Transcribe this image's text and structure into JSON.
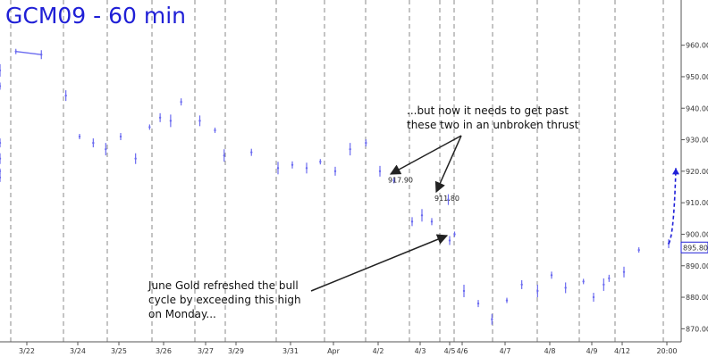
{
  "chart_data": {
    "type": "line",
    "title": "GCM09 - 60 min",
    "xlabel": "",
    "ylabel": "",
    "ylim": [
      865,
      965
    ],
    "x_ticks": [
      "3/22",
      "3/24",
      "3/25",
      "3/26",
      "3/27",
      "3/29",
      "3/31",
      "Apr",
      "4/2",
      "4/3",
      "4/5",
      "4/6",
      "4/7",
      "4/8",
      "4/9",
      "4/12",
      "20:00"
    ],
    "y_ticks": [
      870,
      880,
      890,
      900,
      910,
      920,
      930,
      940,
      950,
      960
    ],
    "y_tick_labels": [
      "870.00",
      "880.00",
      "890.00",
      "900.00",
      "910.00",
      "920.00",
      "930.00",
      "940.00",
      "950.00",
      "960.00"
    ],
    "series": [
      {
        "color": "#6b6bf0",
        "x": [
          "3/22",
          "3/22",
          "3/23",
          "3/23",
          "3/24",
          "3/24",
          "3/24",
          "3/25",
          "3/25",
          "3/25",
          "3/26",
          "3/26",
          "3/26",
          "3/26",
          "3/27",
          "3/27",
          "3/28",
          "3/29",
          "3/29",
          "3/30",
          "3/30",
          "3/30",
          "3/31",
          "3/31",
          "3/31",
          "Apr",
          "Apr",
          "Apr",
          "4/2",
          "4/2",
          "4/2",
          "4/3",
          "4/3",
          "4/3",
          "4/5",
          "4/5",
          "4/6",
          "4/6",
          "4/6",
          "4/7",
          "4/7",
          "4/7",
          "4/8",
          "4/8",
          "4/8",
          "4/9",
          "4/9",
          "4/9",
          "4/12",
          "4/12",
          "4/12",
          "20:00"
        ],
        "values": [
          958,
          957,
          952,
          947,
          944,
          931,
          929,
          927,
          931,
          924,
          934,
          937,
          936,
          942,
          936,
          933,
          929,
          925,
          926,
          924,
          920,
          918,
          921,
          922,
          921,
          923,
          920,
          927,
          929,
          920,
          917,
          904,
          906,
          904,
          911,
          900,
          898,
          882,
          878,
          873,
          879,
          884,
          882,
          887,
          883,
          885,
          880,
          884,
          886,
          888,
          895,
          897
        ],
        "annotations": [
          {
            "price": "917.90"
          },
          {
            "price": "911.80"
          }
        ]
      }
    ],
    "last_price": "895.80",
    "projection_target": 921,
    "grid": "vertical dashed",
    "annotations": [
      {
        "text": [
          "...but now it needs to get past",
          "these two in an unbroken thrust"
        ]
      },
      {
        "text": [
          "June Gold refreshed the bull",
          "cycle by exceeding this high",
          "on Monday..."
        ]
      }
    ]
  }
}
